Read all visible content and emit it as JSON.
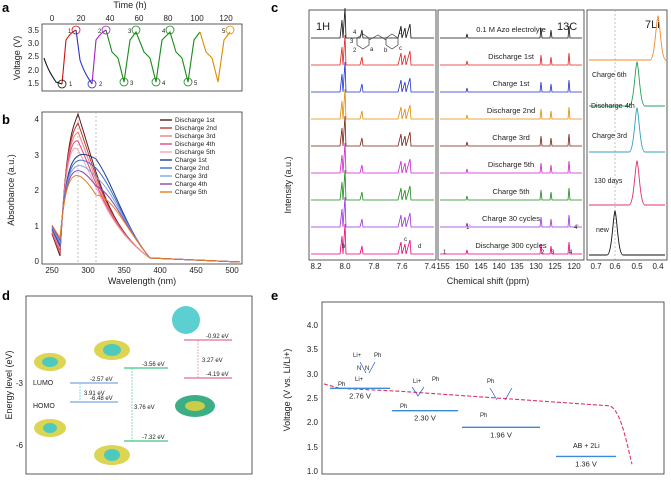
{
  "panels": {
    "a": {
      "label": "a",
      "xlabel": "Time (h)",
      "ylabel": "Voltage (V)",
      "xticks": [
        "0",
        "20",
        "40",
        "60",
        "80",
        "100",
        "120"
      ],
      "yticks": [
        "1.5",
        "2.0",
        "2.5",
        "3.0",
        "3.5"
      ],
      "cycle_labels": [
        "1",
        "1",
        "2",
        "2",
        "3",
        "3",
        "4",
        "4",
        "5",
        "5"
      ]
    },
    "b": {
      "label": "b",
      "xlabel": "Wavelength (nm)",
      "ylabel": "Absorbance (a.u.)",
      "xticks": [
        "250",
        "300",
        "350",
        "400",
        "450",
        "500"
      ],
      "yticks": [
        "0",
        "1",
        "2",
        "3",
        "4"
      ],
      "legend": [
        {
          "name": "Discharge 1st",
          "color": "#5a1a1a"
        },
        {
          "name": "Discharge 2nd",
          "color": "#c0392b"
        },
        {
          "name": "Discharge 3rd",
          "color": "#f08080"
        },
        {
          "name": "Discharge 4th",
          "color": "#e0458a"
        },
        {
          "name": "Discharge 5th",
          "color": "#f4a6b0"
        },
        {
          "name": "Charge 1st",
          "color": "#1f3a93"
        },
        {
          "name": "Charge 2nd",
          "color": "#3b6fd1"
        },
        {
          "name": "Charge 3rd",
          "color": "#7aa7e8"
        },
        {
          "name": "Charge 4th",
          "color": "#8e44ad"
        },
        {
          "name": "Charge 5th",
          "color": "#e67e22"
        }
      ]
    },
    "c": {
      "label": "c",
      "h_title": "1H",
      "c_title": "13C",
      "li_title": "7Li",
      "xlabel": "Chemical shift (ppm)",
      "ylabel": "Intensity (a.u.)",
      "h_xticks": [
        "8.2",
        "8.0",
        "7.8",
        "7.6",
        "7.4"
      ],
      "c_xticks": [
        "155",
        "150",
        "145",
        "140",
        "135",
        "130",
        "125",
        "120"
      ],
      "li_xticks": [
        "0.7",
        "0.6",
        "0.5",
        "0.4"
      ],
      "c_traces": [
        "Discharge 300 cycles",
        "Charge 30 cycles",
        "Charge 5th",
        "Discharge 5th",
        "Charge 3rd",
        "Discharge 2nd",
        "Charge 1st",
        "Discharge 1st",
        "0.1 M Azo electrolyte"
      ],
      "c_colors": [
        "#e6007e",
        "#9b30d9",
        "#1a8a1a",
        "#d020d0",
        "#7a2010",
        "#e08a00",
        "#2030d0",
        "#e02020",
        "#111111"
      ],
      "li_traces": [
        "Charge 6th",
        "Discharge",
        "4th",
        "Charge 3rd",
        "130 days",
        "new"
      ],
      "li_colors": [
        "#f08a30",
        "#2aa05a",
        "#30a0c0",
        "#e0306a",
        "#111111"
      ],
      "h_peak_labels": [
        "b",
        "c",
        "d"
      ],
      "c_peak_labels": [
        "1",
        "1'",
        "2",
        "3",
        "4",
        "4'"
      ],
      "mol_labels": [
        "4",
        "3",
        "2",
        "a",
        "b",
        "c",
        "d"
      ]
    },
    "d": {
      "label": "d",
      "ylabel": "Energy level (eV)",
      "lumo": "LUMO",
      "homo": "HOMO",
      "yticks": [
        "-3",
        "-6"
      ],
      "levels": [
        {
          "lumo": "-2.57 eV",
          "homo": "-6.48 eV",
          "gap": "3.91 eV"
        },
        {
          "lumo": "-3.56 eV",
          "homo": "-7.32 eV",
          "gap": "3.76 eV"
        },
        {
          "lumo": "-0.92 eV",
          "homo": "-4.19 eV",
          "gap": "3.27 eV"
        }
      ]
    },
    "e": {
      "label": "e",
      "ylabel": "Voltage (V vs. Li/Li+)",
      "yticks": [
        "1.0",
        "1.5",
        "2.0",
        "2.5",
        "3.0",
        "3.5",
        "4.0"
      ],
      "steps": [
        {
          "v": "2.76 V",
          "voltage": 2.76
        },
        {
          "v": "2.30 V",
          "voltage": 2.3
        },
        {
          "v": "1.96 V",
          "voltage": 1.96
        },
        {
          "v": "1.36 V",
          "voltage": 1.36
        }
      ],
      "species": [
        "Li+",
        "Li+",
        "Ph",
        "Ph",
        "N",
        "N",
        "Li+",
        "Ph",
        "Ph",
        "Ph",
        "Ph",
        "AB + 2Li"
      ]
    }
  }
}
